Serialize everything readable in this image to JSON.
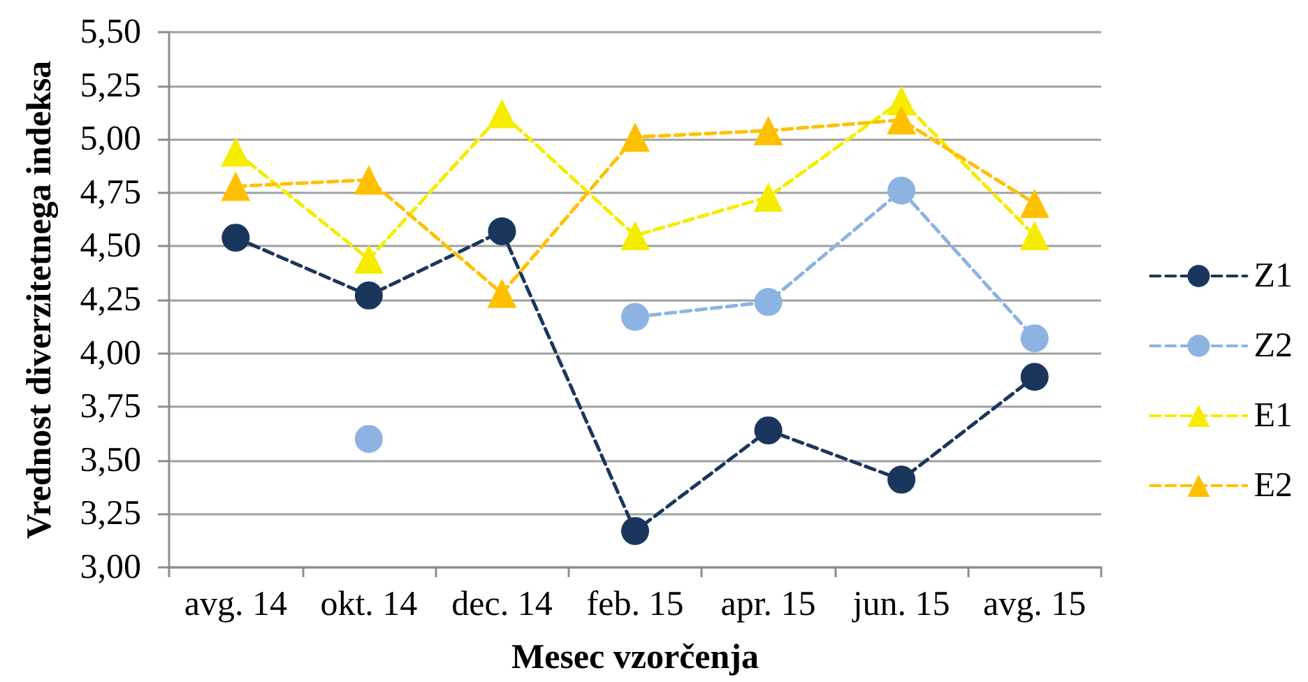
{
  "chart_data": {
    "type": "line",
    "xlabel": "Mesec vzorčenja",
    "ylabel": "Vrednost diverzitetnega indeksa",
    "categories": [
      "avg. 14",
      "okt. 14",
      "dec. 14",
      "feb. 15",
      "apr. 15",
      "jun. 15",
      "avg. 15"
    ],
    "series": [
      {
        "name": "Z1",
        "color": "#1b365d",
        "marker": "circle",
        "values": [
          4.54,
          4.27,
          4.57,
          3.17,
          3.64,
          3.41,
          3.89
        ]
      },
      {
        "name": "Z2",
        "color": "#8db3e2",
        "marker": "circle",
        "values": [
          null,
          3.6,
          null,
          4.17,
          4.24,
          4.76,
          4.07
        ]
      },
      {
        "name": "E1",
        "color": "#f5ec00",
        "marker": "triangle",
        "values": [
          4.94,
          4.44,
          5.12,
          4.55,
          4.73,
          5.18,
          4.55
        ]
      },
      {
        "name": "E2",
        "color": "#ffc000",
        "marker": "triangle",
        "values": [
          4.78,
          4.81,
          4.28,
          5.01,
          5.04,
          5.09,
          4.7
        ]
      }
    ],
    "ylim": [
      3,
      5.5
    ],
    "yticks": [
      {
        "value": 3,
        "label": "3,00"
      },
      {
        "value": 3.25,
        "label": "3,25"
      },
      {
        "value": 3.5,
        "label": "3,50"
      },
      {
        "value": 3.75,
        "label": "3,75"
      },
      {
        "value": 4,
        "label": "4,00"
      },
      {
        "value": 4.25,
        "label": "4,25"
      },
      {
        "value": 4.5,
        "label": "4,50"
      },
      {
        "value": 4.75,
        "label": "4,75"
      },
      {
        "value": 5,
        "label": "5,00"
      },
      {
        "value": 5.25,
        "label": "5,25"
      },
      {
        "value": 5.5,
        "label": "5,50"
      }
    ],
    "grid": "y",
    "legend": "right",
    "line_style": "dashed"
  }
}
